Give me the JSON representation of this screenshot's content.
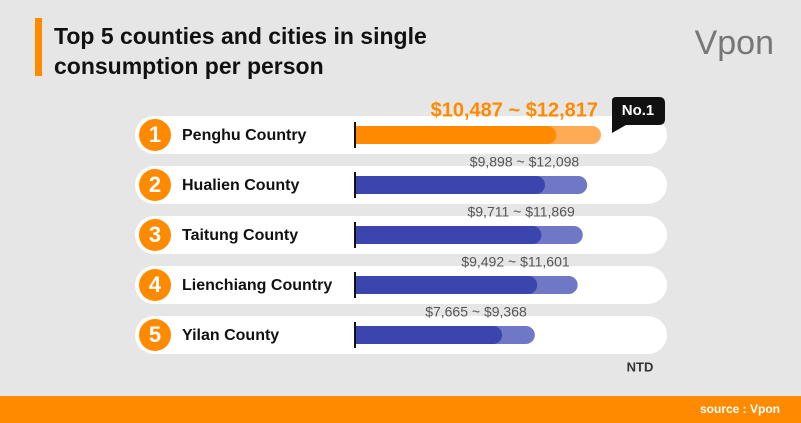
{
  "chart_data": {
    "type": "range_bar",
    "title": [
      "Top 5 counties and cities in single",
      "consumption per person"
    ],
    "logo": "Vpon",
    "ranks": [
      "1",
      "2",
      "3",
      "4",
      "5"
    ],
    "categories": [
      "Penghu Country",
      "Hualien County",
      "Taitung County",
      "Lienchiang Country",
      "Yilan County"
    ],
    "low_values": [
      10487,
      9898,
      9711,
      9492,
      7665
    ],
    "high_values": [
      12817,
      12098,
      11869,
      11601,
      9368
    ],
    "value_labels": [
      "$10,487 ~ $12,817",
      "$9,898 ~ $12,098",
      "$9,711 ~ $11,869",
      "$9,492 ~ $11,601",
      "$7,665 ~ $9,368"
    ],
    "bar_colors": [
      "#ff8a00",
      "#3a45ad",
      "#3a45ad",
      "#3a45ad",
      "#3a45ad"
    ],
    "range_colors": [
      "#ffab55",
      "#6e78c4",
      "#6e78c4",
      "#6e78c4",
      "#6e78c4"
    ],
    "label_colors": [
      "#ff8a00",
      "#555555",
      "#555555",
      "#555555",
      "#555555"
    ],
    "badge": "No.1",
    "unit": "NTD",
    "source": "source : Vpon"
  }
}
